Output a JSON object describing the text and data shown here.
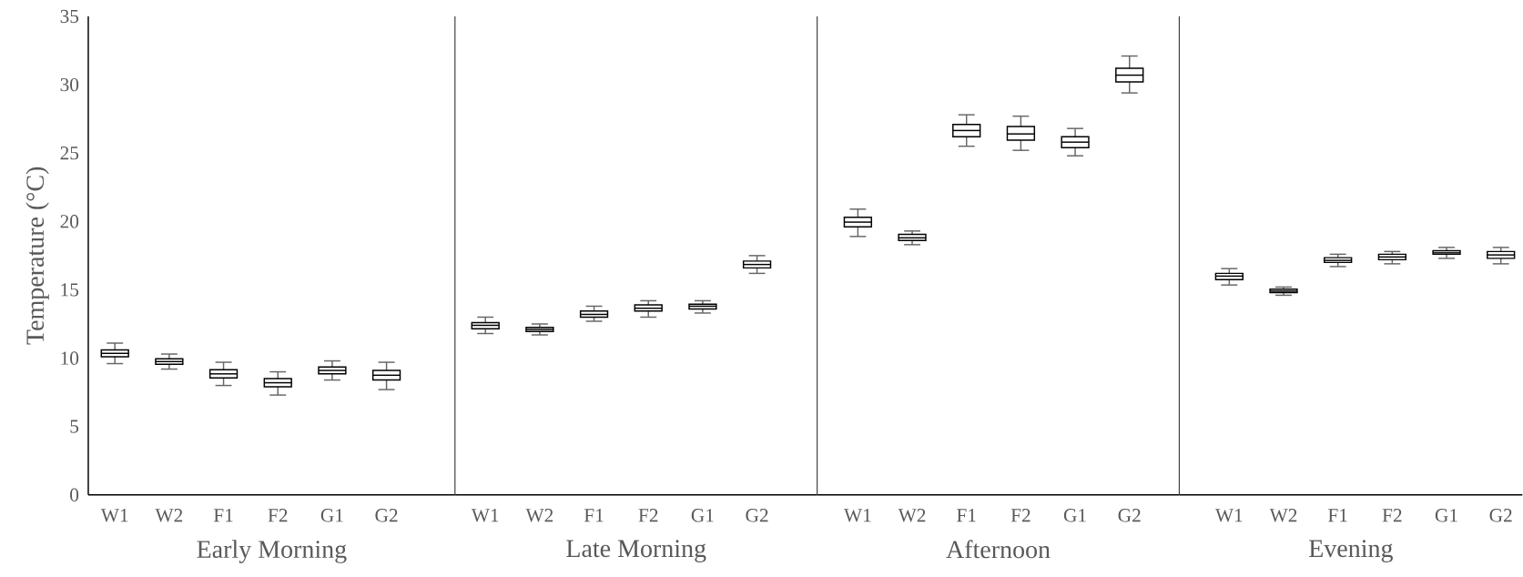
{
  "chart_data": [
    {
      "type": "box",
      "xlabel": "Early Morning",
      "ylabel": "Temperature (°C)",
      "categories": [
        "W1",
        "W2",
        "F1",
        "F2",
        "G1",
        "G2"
      ],
      "ylim": [
        0,
        35
      ],
      "yticks": [
        0,
        5,
        10,
        15,
        20,
        25,
        30,
        35
      ],
      "boxes": [
        {
          "low": 9.6,
          "q1": 10.1,
          "median": 10.35,
          "q3": 10.6,
          "high": 11.1
        },
        {
          "low": 9.2,
          "q1": 9.55,
          "median": 9.75,
          "q3": 9.95,
          "high": 10.3
        },
        {
          "low": 8.0,
          "q1": 8.55,
          "median": 8.85,
          "q3": 9.15,
          "high": 9.7
        },
        {
          "low": 7.3,
          "q1": 7.9,
          "median": 8.2,
          "q3": 8.5,
          "high": 9.0
        },
        {
          "low": 8.4,
          "q1": 8.85,
          "median": 9.1,
          "q3": 9.35,
          "high": 9.8
        },
        {
          "low": 7.7,
          "q1": 8.4,
          "median": 8.75,
          "q3": 9.1,
          "high": 9.7
        }
      ]
    },
    {
      "type": "box",
      "xlabel": "Late Morning",
      "categories": [
        "W1",
        "W2",
        "F1",
        "F2",
        "G1",
        "G2"
      ],
      "ylim": [
        0,
        35
      ],
      "yticks": [
        0,
        5,
        10,
        15,
        20,
        25,
        30,
        35
      ],
      "tick_labels": "x",
      "boxes": [
        {
          "low": 11.8,
          "q1": 12.15,
          "median": 12.4,
          "q3": 12.6,
          "high": 13.0
        },
        {
          "low": 11.7,
          "q1": 11.95,
          "median": 12.1,
          "q3": 12.25,
          "high": 12.5
        },
        {
          "low": 12.7,
          "q1": 13.0,
          "median": 13.2,
          "q3": 13.45,
          "high": 13.8
        },
        {
          "low": 13.0,
          "q1": 13.45,
          "median": 13.65,
          "q3": 13.9,
          "high": 14.2
        },
        {
          "low": 13.3,
          "q1": 13.6,
          "median": 13.8,
          "q3": 13.95,
          "high": 14.2
        },
        {
          "low": 16.2,
          "q1": 16.6,
          "median": 16.85,
          "q3": 17.1,
          "high": 17.5
        }
      ]
    },
    {
      "type": "box",
      "xlabel": "Afternoon",
      "categories": [
        "W1",
        "W2",
        "F1",
        "F2",
        "G1",
        "G2"
      ],
      "ylim": [
        0,
        35
      ],
      "yticks": [
        0,
        5,
        10,
        15,
        20,
        25,
        30,
        35
      ],
      "tick_labels": "x",
      "boxes": [
        {
          "low": 18.9,
          "q1": 19.6,
          "median": 19.95,
          "q3": 20.3,
          "high": 20.9
        },
        {
          "low": 18.3,
          "q1": 18.6,
          "median": 18.8,
          "q3": 19.05,
          "high": 19.3
        },
        {
          "low": 25.5,
          "q1": 26.2,
          "median": 26.65,
          "q3": 27.1,
          "high": 27.8
        },
        {
          "low": 25.2,
          "q1": 25.95,
          "median": 26.4,
          "q3": 26.95,
          "high": 27.7
        },
        {
          "low": 24.8,
          "q1": 25.4,
          "median": 25.8,
          "q3": 26.2,
          "high": 26.8
        },
        {
          "low": 29.4,
          "q1": 30.2,
          "median": 30.7,
          "q3": 31.2,
          "high": 32.1
        }
      ]
    },
    {
      "type": "box",
      "xlabel": "Evening",
      "categories": [
        "W1",
        "W2",
        "F1",
        "F2",
        "G1",
        "G2"
      ],
      "ylim": [
        0,
        35
      ],
      "yticks": [
        0,
        5,
        10,
        15,
        20,
        25,
        30,
        35
      ],
      "tick_labels": "x",
      "boxes": [
        {
          "low": 15.35,
          "q1": 15.75,
          "median": 16.0,
          "q3": 16.2,
          "high": 16.55
        },
        {
          "low": 14.6,
          "q1": 14.8,
          "median": 14.9,
          "q3": 15.05,
          "high": 15.2
        },
        {
          "low": 16.7,
          "q1": 17.0,
          "median": 17.15,
          "q3": 17.35,
          "high": 17.6
        },
        {
          "low": 16.9,
          "q1": 17.2,
          "median": 17.4,
          "q3": 17.6,
          "high": 17.8
        },
        {
          "low": 17.3,
          "q1": 17.6,
          "median": 17.7,
          "q3": 17.85,
          "high": 18.1
        },
        {
          "low": 16.9,
          "q1": 17.3,
          "median": 17.55,
          "q3": 17.8,
          "high": 18.1
        }
      ]
    }
  ]
}
